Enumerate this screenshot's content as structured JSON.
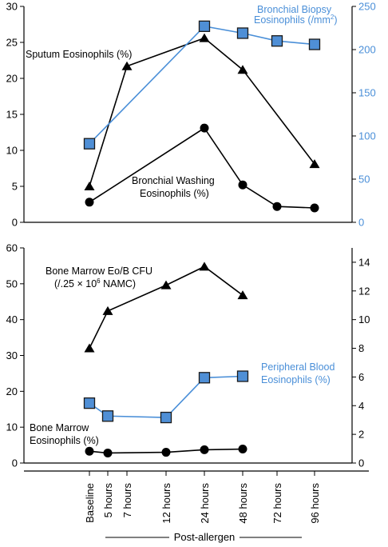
{
  "chart_data": {
    "type": "line",
    "x_axis": {
      "label": "Post-allergen",
      "categories": [
        "Baseline",
        "5 hours",
        "7 hours",
        "12 hours",
        "24 hours",
        "48 hours",
        "72 hours",
        "96 hours"
      ]
    },
    "panels": [
      {
        "id": "top",
        "left_axis": {
          "ylim": [
            0,
            30
          ],
          "ticks": [
            "0",
            "5",
            "10",
            "15",
            "20",
            "25",
            "30"
          ]
        },
        "right_axis": {
          "ylim": [
            0,
            250
          ],
          "ticks": [
            "0",
            "50",
            "100",
            "150",
            "200",
            "250"
          ]
        },
        "series": [
          {
            "name": "Sputum Eosinophils (%)",
            "marker": "triangle",
            "color": "#000000",
            "axis": "left",
            "points": [
              {
                "x": "Baseline",
                "y": 5.0
              },
              {
                "x": "7 hours",
                "y": 21.7
              },
              {
                "x": "24 hours",
                "y": 25.6
              },
              {
                "x": "48 hours",
                "y": 21.2
              },
              {
                "x": "96 hours",
                "y": 8.1
              }
            ]
          },
          {
            "name": "Bronchial Washing Eosinophils (%)",
            "marker": "circle",
            "color": "#000000",
            "axis": "left",
            "points": [
              {
                "x": "Baseline",
                "y": 2.8
              },
              {
                "x": "24 hours",
                "y": 13.1
              },
              {
                "x": "48 hours",
                "y": 5.2
              },
              {
                "x": "72 hours",
                "y": 2.2
              },
              {
                "x": "96 hours",
                "y": 2.0
              }
            ]
          },
          {
            "name": "Bronchial Biopsy Eosinophils (/mm²)",
            "marker": "square",
            "color": "#4a8fd8",
            "axis": "right",
            "points": [
              {
                "x": "Baseline",
                "y": 91
              },
              {
                "x": "24 hours",
                "y": 227
              },
              {
                "x": "48 hours",
                "y": 219
              },
              {
                "x": "72 hours",
                "y": 210
              },
              {
                "x": "96 hours",
                "y": 206
              }
            ]
          }
        ]
      },
      {
        "id": "bottom",
        "left_axis": {
          "ylim": [
            0,
            60
          ],
          "ticks": [
            "0",
            "10",
            "20",
            "30",
            "40",
            "50",
            "60"
          ]
        },
        "right_axis": {
          "ylim": [
            0,
            15
          ],
          "ticks": [
            "0",
            "2",
            "4",
            "6",
            "8",
            "10",
            "12",
            "14"
          ]
        },
        "series": [
          {
            "name": "Bone Marrow Eo/B CFU (/.25 × 10⁶ NAMC)",
            "marker": "triangle",
            "color": "#000000",
            "axis": "right",
            "points": [
              {
                "x": "Baseline",
                "y": 8.0
              },
              {
                "x": "5 hours",
                "y": 10.6
              },
              {
                "x": "12 hours",
                "y": 12.4
              },
              {
                "x": "24 hours",
                "y": 13.7
              },
              {
                "x": "48 hours",
                "y": 11.7
              }
            ]
          },
          {
            "name": "Peripheral Blood Eosinophils (%)",
            "marker": "square",
            "color": "#4a8fd8",
            "axis": "left",
            "points": [
              {
                "x": "Baseline",
                "y": 16.7
              },
              {
                "x": "5 hours",
                "y": 13.1
              },
              {
                "x": "12 hours",
                "y": 12.7
              },
              {
                "x": "24 hours",
                "y": 23.8
              },
              {
                "x": "48 hours",
                "y": 24.2
              }
            ]
          },
          {
            "name": "Bone Marrow Eosinophils (%)",
            "marker": "circle",
            "color": "#000000",
            "axis": "left",
            "points": [
              {
                "x": "Baseline",
                "y": 3.3
              },
              {
                "x": "5 hours",
                "y": 2.8
              },
              {
                "x": "12 hours",
                "y": 3.0
              },
              {
                "x": "24 hours",
                "y": 3.7
              },
              {
                "x": "48 hours",
                "y": 3.9
              }
            ]
          }
        ]
      }
    ],
    "annotations": {
      "sputum": "Sputum Eosinophils (%)",
      "biopsy_line1": "Bronchial Biopsy",
      "biopsy_line2": "Eosinophils (/mm",
      "biopsy_sup": "2",
      "biopsy_end": ")",
      "washing_line1": "Bronchial Washing",
      "washing_line2": "Eosinophils (%)",
      "cfu_line1": "Bone Marrow Eo/B CFU",
      "cfu_line2": "(/.25 × 10",
      "cfu_sup": "6",
      "cfu_end": " NAMC)",
      "blood_line1": "Peripheral Blood",
      "blood_line2": "Eosinophils (%)",
      "marrow_line1": "Bone Marrow",
      "marrow_line2": "Eosinophils (%)"
    },
    "colors": {
      "black": "#000000",
      "blue": "#4a8fd8",
      "marker_fill_blue": "#4f8fd6"
    }
  }
}
